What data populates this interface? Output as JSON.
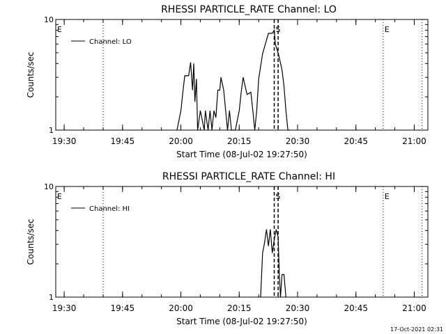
{
  "footer": {
    "timestamp": "17-Oct-2021 02:31"
  },
  "chart_data": [
    {
      "type": "line",
      "title": "RHESSI PARTICLE_RATE Channel: LO",
      "xlabel": "Start Time (08-Jul-02 19:27:50)",
      "ylabel": "Counts/sec",
      "y_scale": "log",
      "ylim": [
        1,
        10
      ],
      "ytick_labels": [
        "1",
        "10"
      ],
      "x_ticks": [
        "19:30",
        "19:45",
        "20:00",
        "20:15",
        "20:30",
        "20:45",
        "21:00"
      ],
      "xlim_minutes_after_1930": [
        -2.17,
        93.5
      ],
      "legend": {
        "position": "top-left",
        "label": "Channel: LO"
      },
      "markers": [
        {
          "label": "E",
          "t": "19:27:50",
          "style": "dotted"
        },
        {
          "label": "",
          "t": "19:40",
          "style": "dotted"
        },
        {
          "label": "S",
          "t": "20:24",
          "style": "dashed"
        },
        {
          "label": "",
          "t": "20:25",
          "style": "dashed"
        },
        {
          "label": "E",
          "t": "20:52",
          "style": "dotted"
        },
        {
          "label": "",
          "t": "21:02",
          "style": "dotted"
        }
      ],
      "series": [
        {
          "name": "Channel: LO",
          "t": [
            "19:59",
            "20:00",
            "20:00.5",
            "20:01",
            "20:02",
            "20:02.5",
            "20:03",
            "20:03.3",
            "20:03.6",
            "20:04",
            "20:04.3",
            "20:05",
            "20:06",
            "20:06.3",
            "20:07",
            "20:07.5",
            "20:08",
            "20:08.5",
            "20:09",
            "20:09.5",
            "20:10",
            "20:10.3",
            "20:11",
            "20:11.5",
            "20:12",
            "20:12.5",
            "20:13",
            "20:13.5",
            "20:14",
            "20:15",
            "20:15.5",
            "20:16",
            "20:17",
            "20:18",
            "20:18.5",
            "20:19",
            "20:19.5",
            "20:20",
            "20:21",
            "20:22",
            "20:22.5",
            "20:23",
            "20:23.5",
            "20:24",
            "20:24.3",
            "20:24.6",
            "20:25",
            "20:25.3",
            "20:26",
            "20:26.5",
            "20:27",
            "20:27.5",
            "20:28"
          ],
          "values": [
            1.0,
            1.5,
            2.2,
            3.1,
            3.1,
            4.1,
            2.3,
            4.0,
            1.8,
            2.9,
            1.0,
            1.5,
            1.0,
            1.5,
            1.0,
            1.5,
            1.0,
            1.5,
            1.3,
            2.3,
            2.3,
            3.0,
            2.3,
            1.5,
            1.0,
            1.5,
            1.0,
            1.0,
            1.0,
            1.5,
            2.2,
            3.0,
            2.1,
            2.2,
            1.5,
            1.0,
            1.5,
            2.9,
            4.9,
            6.5,
            7.5,
            7.5,
            7.5,
            8.0,
            6.0,
            5.5,
            5.0,
            4.5,
            3.5,
            2.5,
            1.5,
            1.0,
            1.0
          ]
        }
      ]
    },
    {
      "type": "line",
      "title": "RHESSI PARTICLE_RATE Channel: HI",
      "xlabel": "Start Time (08-Jul-02 19:27:50)",
      "ylabel": "Counts/sec",
      "y_scale": "log",
      "ylim": [
        1,
        10
      ],
      "ytick_labels": [
        "1",
        "10"
      ],
      "x_ticks": [
        "19:30",
        "19:45",
        "20:00",
        "20:15",
        "20:30",
        "20:45",
        "21:00"
      ],
      "xlim_minutes_after_1930": [
        -2.17,
        93.5
      ],
      "legend": {
        "position": "top-left",
        "label": "Channel: HI"
      },
      "markers": [
        {
          "label": "E",
          "t": "19:27:50",
          "style": "dotted"
        },
        {
          "label": "",
          "t": "19:40",
          "style": "dotted"
        },
        {
          "label": "S",
          "t": "20:24",
          "style": "dashed"
        },
        {
          "label": "",
          "t": "20:25",
          "style": "dashed"
        },
        {
          "label": "E",
          "t": "20:52",
          "style": "dotted"
        },
        {
          "label": "",
          "t": "21:02",
          "style": "dotted"
        }
      ],
      "series": [
        {
          "name": "Channel: HI",
          "t": [
            "20:20.5",
            "20:21",
            "20:21.5",
            "20:22",
            "20:22.5",
            "20:23",
            "20:23.5",
            "20:24",
            "20:24.5",
            "20:25",
            "20:25.3",
            "20:25.6",
            "20:26",
            "20:26.5",
            "20:27"
          ],
          "values": [
            1.0,
            2.5,
            3.1,
            4.1,
            2.9,
            4.1,
            2.5,
            3.3,
            4.1,
            3.5,
            1.6,
            1.0,
            1.6,
            1.6,
            1.0
          ]
        }
      ]
    }
  ]
}
